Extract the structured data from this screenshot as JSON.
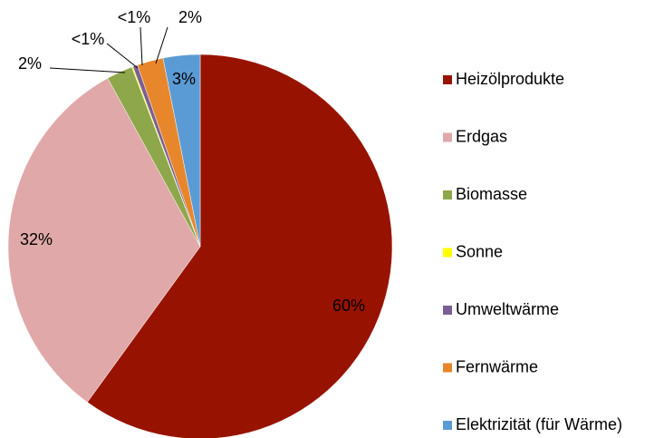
{
  "chart_data": {
    "type": "pie",
    "categories": [
      "Heizölprodukte",
      "Erdgas",
      "Biomasse",
      "Sonne",
      "Umweltwärme",
      "Fernwärme",
      "Elektrizität (für Wärme)"
    ],
    "values": [
      60,
      32,
      2.2,
      0.1,
      0.4,
      2.2,
      3.1
    ],
    "value_labels": [
      "60%",
      "32%",
      "2%",
      "<1%",
      "<1%",
      "2%",
      "3%"
    ],
    "colors": [
      "#971300",
      "#e0a8a8",
      "#8ea74a",
      "#ffff00",
      "#7b5f94",
      "#e8862b",
      "#5b9bd5"
    ],
    "legend": "right"
  }
}
